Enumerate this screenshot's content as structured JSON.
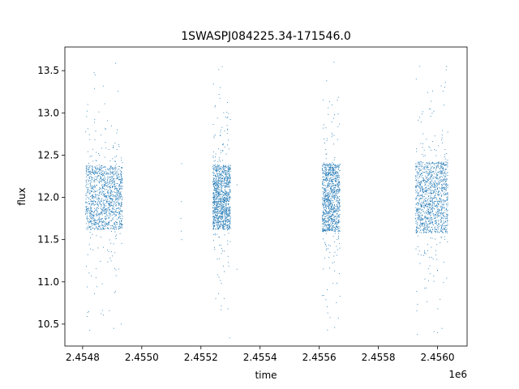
{
  "chart_data": {
    "type": "scatter",
    "title": "1SWASPJ084225.34-171546.0",
    "xlabel": "time",
    "ylabel": "flux",
    "x_offset_label": "1e6",
    "xlim": [
      2.45474,
      2.4561
    ],
    "ylim": [
      10.24,
      13.78
    ],
    "x_ticks": [
      2.4548,
      2.455,
      2.4552,
      2.4554,
      2.4556,
      2.4558,
      2.456
    ],
    "x_tick_labels": [
      "2.4548",
      "2.4550",
      "2.4552",
      "2.4554",
      "2.4556",
      "2.4558",
      "2.4560"
    ],
    "y_ticks": [
      10.5,
      11.0,
      11.5,
      12.0,
      12.5,
      13.0,
      13.5
    ],
    "y_tick_labels": [
      "10.5",
      "11.0",
      "11.5",
      "12.0",
      "12.5",
      "13.0",
      "13.5"
    ],
    "grid": false,
    "point_color": "#1f77b4",
    "series": [
      {
        "clusters": [
          {
            "x_start": 2.45481,
            "x_end": 2.454935,
            "center": 12.0,
            "spread": 0.38,
            "count": 1300
          },
          {
            "x_start": 2.45524,
            "x_end": 2.4553,
            "center": 12.0,
            "spread": 0.38,
            "count": 1200
          },
          {
            "x_start": 2.45561,
            "x_end": 2.45567,
            "center": 12.0,
            "spread": 0.4,
            "count": 1100
          },
          {
            "x_start": 2.455925,
            "x_end": 2.456035,
            "center": 12.0,
            "spread": 0.42,
            "count": 1300
          }
        ],
        "sparse_points": [
          {
            "x": 2.455135,
            "y": 12.4
          },
          {
            "x": 2.455135,
            "y": 11.5
          },
          {
            "x": 2.455132,
            "y": 11.75
          },
          {
            "x": 2.455134,
            "y": 11.95
          },
          {
            "x": 2.455133,
            "y": 11.6
          },
          {
            "x": 2.455322,
            "y": 11.15
          },
          {
            "x": 2.455322,
            "y": 12.15
          },
          {
            "x": 2.454842,
            "y": 13.45
          },
          {
            "x": 2.45482,
            "y": 10.65
          },
          {
            "x": 2.454905,
            "y": 10.45
          },
          {
            "x": 2.45493,
            "y": 10.5
          },
          {
            "x": 2.45525,
            "y": 10.8
          },
          {
            "x": 2.455265,
            "y": 13.3
          },
          {
            "x": 2.45565,
            "y": 13.6
          },
          {
            "x": 2.455625,
            "y": 13.38
          },
          {
            "x": 2.455628,
            "y": 10.43
          },
          {
            "x": 2.45594,
            "y": 13.55
          },
          {
            "x": 2.45603,
            "y": 13.55
          },
          {
            "x": 2.455932,
            "y": 10.38
          },
          {
            "x": 2.456,
            "y": 10.4
          },
          {
            "x": 2.456015,
            "y": 10.45
          }
        ]
      }
    ]
  }
}
